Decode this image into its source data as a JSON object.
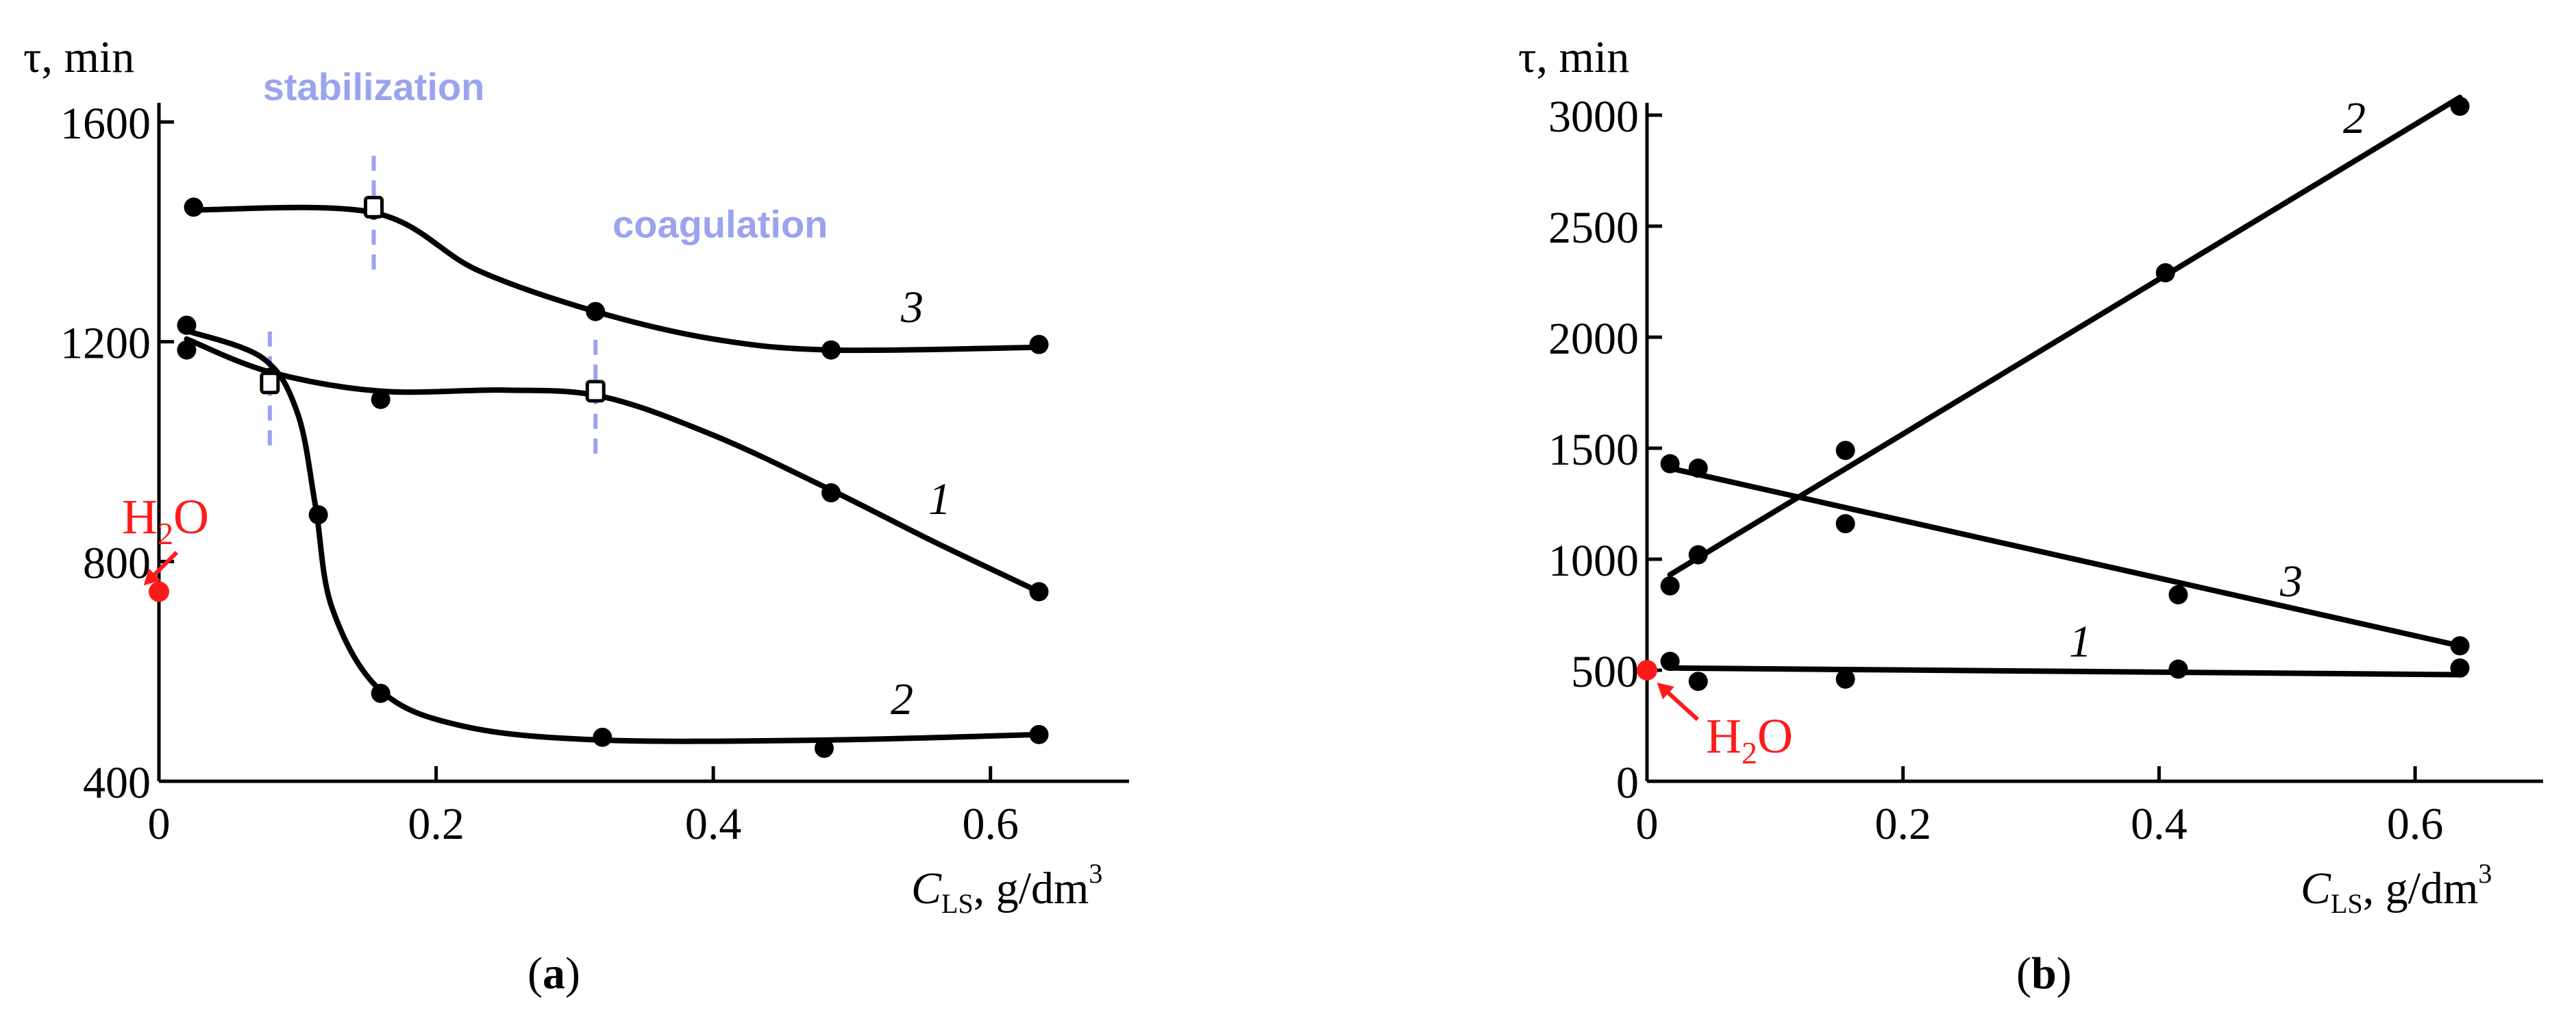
{
  "chart_data": [
    {
      "id": "a",
      "type": "line",
      "panel_label": "(a)",
      "ylabel": "τ, min",
      "xlabel_main": "C",
      "xlabel_sub": "LS",
      "xlabel_unit": ", g/dm",
      "xlabel_sup": "3",
      "xlim": [
        0,
        0.7
      ],
      "ylim": [
        400,
        1600
      ],
      "xticks": [
        0,
        0.2,
        0.4,
        0.6
      ],
      "xtick_labels": [
        "0",
        "0.2",
        "0.4",
        "0.6"
      ],
      "yticks": [
        400,
        800,
        1200,
        1600
      ],
      "ytick_labels": [
        "400",
        "800",
        "1200",
        "1600"
      ],
      "annotations": [
        {
          "text": "stabilization",
          "x": 0.155,
          "y": 1640
        },
        {
          "text": "coagulation",
          "x": 0.405,
          "y": 1390
        }
      ],
      "markers": [
        {
          "x": 0.08,
          "y": 1125
        },
        {
          "x": 0.155,
          "y": 1445
        },
        {
          "x": 0.315,
          "y": 1110
        }
      ],
      "reference": {
        "text_main": "H",
        "text_sub": "2",
        "text_end": "O",
        "x": 0,
        "y": 745
      },
      "series": [
        {
          "name": "1",
          "points": [
            [
              0.02,
              1185
            ],
            [
              0.08,
              1135
            ],
            [
              0.16,
              1095
            ],
            [
              0.315,
              1110
            ],
            [
              0.485,
              925
            ],
            [
              0.635,
              745
            ]
          ],
          "curve": [
            [
              0.02,
              1205
            ],
            [
              0.08,
              1145
            ],
            [
              0.16,
              1110
            ],
            [
              0.25,
              1112
            ],
            [
              0.32,
              1100
            ],
            [
              0.4,
              1030
            ],
            [
              0.485,
              930
            ],
            [
              0.56,
              835
            ],
            [
              0.635,
              745
            ]
          ]
        },
        {
          "name": "2",
          "points": [
            [
              0.02,
              1230
            ],
            [
              0.115,
              885
            ],
            [
              0.16,
              560
            ],
            [
              0.32,
              480
            ],
            [
              0.48,
              460
            ],
            [
              0.635,
              485
            ]
          ],
          "curve": [
            [
              0.02,
              1220
            ],
            [
              0.075,
              1170
            ],
            [
              0.1,
              1070
            ],
            [
              0.113,
              900
            ],
            [
              0.125,
              715
            ],
            [
              0.16,
              565
            ],
            [
              0.22,
              500
            ],
            [
              0.32,
              475
            ],
            [
              0.48,
              475
            ],
            [
              0.635,
              485
            ]
          ]
        },
        {
          "name": "3",
          "points": [
            [
              0.025,
              1445
            ],
            [
              0.155,
              1440
            ],
            [
              0.315,
              1255
            ],
            [
              0.485,
              1185
            ],
            [
              0.635,
              1195
            ]
          ],
          "curve": [
            [
              0.025,
              1440
            ],
            [
              0.155,
              1435
            ],
            [
              0.23,
              1330
            ],
            [
              0.315,
              1255
            ],
            [
              0.4,
              1205
            ],
            [
              0.485,
              1185
            ],
            [
              0.635,
              1190
            ]
          ]
        }
      ]
    },
    {
      "id": "b",
      "type": "line",
      "panel_label": "(b)",
      "ylabel": "τ, min",
      "xlabel_main": "C",
      "xlabel_sub": "LS",
      "xlabel_unit": ", g/dm",
      "xlabel_sup": "3",
      "xlim": [
        0,
        0.7
      ],
      "ylim": [
        0,
        3000
      ],
      "xticks": [
        0,
        0.2,
        0.4,
        0.6
      ],
      "xtick_labels": [
        "0",
        "0.2",
        "0.4",
        "0.6"
      ],
      "yticks": [
        0,
        500,
        1000,
        1500,
        2000,
        2500,
        3000
      ],
      "ytick_labels": [
        "0",
        "500",
        "1000",
        "1500",
        "2000",
        "2500",
        "3000"
      ],
      "reference": {
        "text_main": "H",
        "text_sub": "2",
        "text_end": "O",
        "x": 0,
        "y": 500
      },
      "series": [
        {
          "name": "1",
          "points": [
            [
              0.018,
              540
            ],
            [
              0.04,
              450
            ],
            [
              0.155,
              460
            ],
            [
              0.415,
              505
            ],
            [
              0.635,
              510
            ]
          ],
          "curve": [
            [
              0.018,
              510
            ],
            [
              0.635,
              480
            ]
          ]
        },
        {
          "name": "2",
          "points": [
            [
              0.018,
              880
            ],
            [
              0.04,
              1020
            ],
            [
              0.155,
              1490
            ],
            [
              0.405,
              2290
            ],
            [
              0.635,
              3040
            ]
          ],
          "curve": [
            [
              0.018,
              930
            ],
            [
              0.635,
              3080
            ]
          ]
        },
        {
          "name": "3",
          "points": [
            [
              0.018,
              1430
            ],
            [
              0.04,
              1410
            ],
            [
              0.155,
              1160
            ],
            [
              0.415,
              840
            ],
            [
              0.635,
              610
            ]
          ],
          "curve": [
            [
              0.018,
              1410
            ],
            [
              0.635,
              610
            ]
          ]
        }
      ]
    }
  ]
}
